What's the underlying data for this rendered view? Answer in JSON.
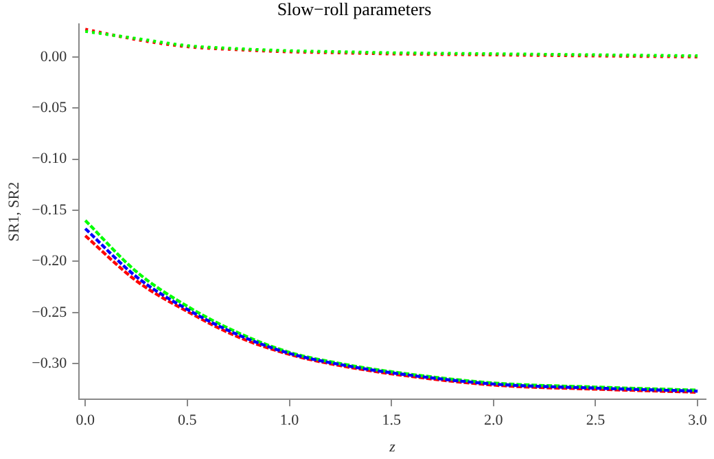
{
  "chart_data": {
    "type": "line",
    "title": "Slow−roll parameters",
    "xlabel": "z",
    "ylabel": "SR1, SR2",
    "xlim": [
      -0.03,
      3.04
    ],
    "ylim": [
      -0.335,
      0.032
    ],
    "xticks": [
      {
        "value": 0,
        "label": "0.0"
      },
      {
        "value": 0.5,
        "label": "0.5"
      },
      {
        "value": 1,
        "label": "1.0"
      },
      {
        "value": 1.5,
        "label": "1.5"
      },
      {
        "value": 2,
        "label": "2.0"
      },
      {
        "value": 2.5,
        "label": "2.5"
      },
      {
        "value": 3,
        "label": "3.0"
      }
    ],
    "yticks": [
      {
        "value": -0.3,
        "label": "−0.30"
      },
      {
        "value": -0.25,
        "label": "−0.25"
      },
      {
        "value": -0.2,
        "label": "−0.20"
      },
      {
        "value": -0.15,
        "label": "−0.15"
      },
      {
        "value": -0.1,
        "label": "−0.10"
      },
      {
        "value": -0.05,
        "label": "−0.05"
      },
      {
        "value": 0,
        "label": "0.00"
      }
    ],
    "x": [
      0,
      0.25,
      0.5,
      0.75,
      1,
      1.25,
      1.5,
      2,
      2.5,
      3
    ],
    "grid": false,
    "legend": false,
    "marker": "none",
    "series": [
      {
        "color": "#00ff00",
        "line_style": "dotted",
        "values": [
          0.025,
          0.018,
          0.011,
          0.008,
          0.006,
          0.005,
          0.004,
          0.003,
          0.002,
          0.001
        ]
      },
      {
        "color": "#ff0000",
        "line_style": "dotted",
        "values": [
          0.027,
          0.017,
          0.01,
          0.007,
          0.005,
          0.004,
          0.003,
          0.002,
          0.001,
          0
        ]
      },
      {
        "color": "#0000ff",
        "line_style": "dashed",
        "values": [
          -0.168,
          -0.215,
          -0.247,
          -0.272,
          -0.29,
          -0.301,
          -0.309,
          -0.32,
          -0.324,
          -0.327
        ]
      },
      {
        "color": "#00ff00",
        "line_style": "dashed",
        "values": [
          -0.16,
          -0.21,
          -0.244,
          -0.27,
          -0.289,
          -0.3,
          -0.308,
          -0.319,
          -0.323,
          -0.326
        ]
      },
      {
        "color": "#ff0000",
        "line_style": "dashed",
        "values": [
          -0.175,
          -0.219,
          -0.249,
          -0.274,
          -0.291,
          -0.302,
          -0.31,
          -0.321,
          -0.325,
          -0.328
        ]
      }
    ]
  }
}
